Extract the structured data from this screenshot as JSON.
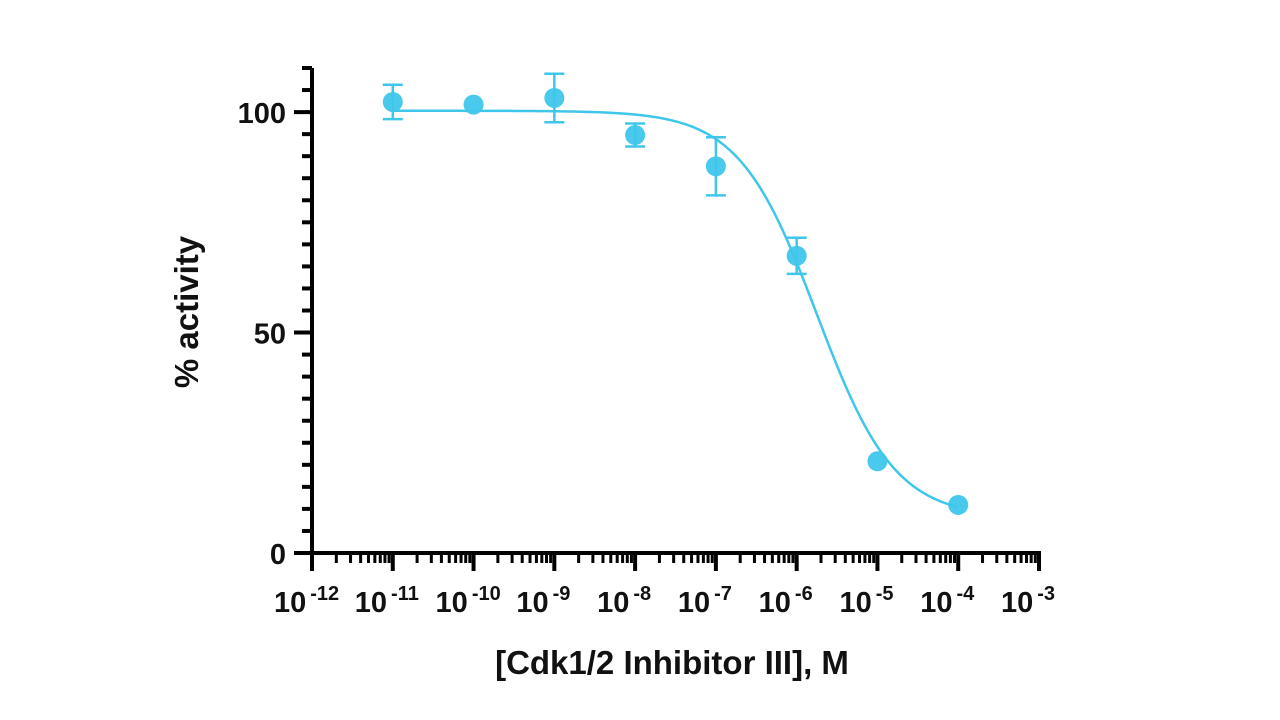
{
  "chart_data": {
    "type": "scatter",
    "title": "",
    "xlabel": "[Cdk1/2 Inhibitor III], M",
    "ylabel": "% activity",
    "xscale": "log10",
    "xlim_log10": [
      -12,
      -3
    ],
    "ylim": [
      0,
      110
    ],
    "x_ticks": [
      {
        "exp": -12,
        "label": "10",
        "sup": "-12"
      },
      {
        "exp": -11,
        "label": "10",
        "sup": "-11"
      },
      {
        "exp": -10,
        "label": "10",
        "sup": "-10"
      },
      {
        "exp": -9,
        "label": "10",
        "sup": "-9"
      },
      {
        "exp": -8,
        "label": "10",
        "sup": "-8"
      },
      {
        "exp": -7,
        "label": "10",
        "sup": "-7"
      },
      {
        "exp": -6,
        "label": "10",
        "sup": "-6"
      },
      {
        "exp": -5,
        "label": "10",
        "sup": "-5"
      },
      {
        "exp": -4,
        "label": "10",
        "sup": "-4"
      },
      {
        "exp": -3,
        "label": "10",
        "sup": "-3"
      }
    ],
    "y_ticks": [
      {
        "value": 0,
        "label": "0"
      },
      {
        "value": 50,
        "label": "50"
      },
      {
        "value": 100,
        "label": "100"
      }
    ],
    "y_minor_step": 5,
    "grid": false,
    "legend": null,
    "series": [
      {
        "name": "% activity",
        "color": "#3FC6EB",
        "x_log10": [
          -11,
          -10,
          -9,
          -8,
          -7,
          -6,
          -5,
          -4
        ],
        "x": [
          "1e-11",
          "1e-10",
          "1e-9",
          "1e-8",
          "1e-7",
          "1e-6",
          "1e-5",
          "1e-4"
        ],
        "y": [
          102.3,
          101.7,
          103.2,
          94.8,
          87.7,
          67.4,
          20.8,
          10.9
        ],
        "error": [
          3.9,
          0,
          5.5,
          2.6,
          6.6,
          4.1,
          0,
          0
        ]
      }
    ],
    "fit": {
      "model": "4PL",
      "top": 100.3,
      "bottom": 8,
      "logIC50": -5.75,
      "hill": 0.9,
      "x_range_log10": [
        -11,
        -4
      ],
      "color": "#3FC6EB"
    }
  }
}
